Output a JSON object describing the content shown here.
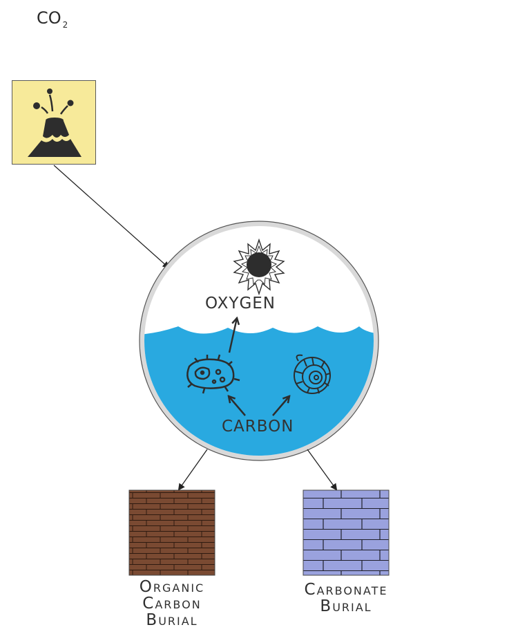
{
  "co2": {
    "base": "CO",
    "subscript": "2"
  },
  "labels": {
    "oxygen": "OXYGEN",
    "carbon": "CARBON"
  },
  "organic_burial": {
    "line1_cap": "O",
    "line1_rest": "RGANIC",
    "line2_cap": "C",
    "line2_rest": "ARBON",
    "line3_cap": "B",
    "line3_rest": "URIAL"
  },
  "carbonate_burial": {
    "line1_cap": "C",
    "line1_rest": "ARBONATE",
    "line2_cap": "B",
    "line2_rest": "URIAL"
  },
  "colors": {
    "volcano_bg": "#f7ea9a",
    "ocean": "#29a9e0",
    "organic_rock": "#7a4a32",
    "carbonate_rock": "#9aa2de",
    "ring": "#d8d8d8"
  },
  "icons": [
    "volcano-icon",
    "sun-icon",
    "plankton-icon",
    "ammonite-shell-icon"
  ]
}
